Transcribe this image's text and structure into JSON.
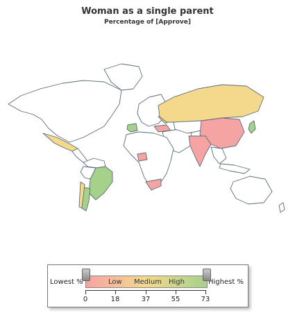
{
  "title": "Woman as a single parent",
  "subtitle": "Percentage of [Approve]",
  "legend": {
    "low_end_label": "Lowest %",
    "high_end_label": "Highest %",
    "bands": [
      "Low",
      "Medium",
      "High"
    ],
    "ticks": [
      "0",
      "18",
      "37",
      "55",
      "73"
    ],
    "colors": {
      "low": "#f6a3a3",
      "medium": "#f4d98c",
      "high": "#a6d18a",
      "no_data": "#ffffff"
    }
  },
  "regions": [
    {
      "name": "Russia",
      "level": "medium"
    },
    {
      "name": "China",
      "level": "low"
    },
    {
      "name": "India",
      "level": "low"
    },
    {
      "name": "Mexico",
      "level": "medium"
    },
    {
      "name": "Brazil",
      "level": "high"
    },
    {
      "name": "Argentina",
      "level": "high"
    },
    {
      "name": "Chile",
      "level": "medium"
    },
    {
      "name": "South Africa",
      "level": "low"
    },
    {
      "name": "Spain",
      "level": "high"
    },
    {
      "name": "Turkey",
      "level": "low"
    },
    {
      "name": "Nigeria",
      "level": "low"
    },
    {
      "name": "Japan",
      "level": "high"
    },
    {
      "name": "Ukraine",
      "level": "medium"
    }
  ]
}
